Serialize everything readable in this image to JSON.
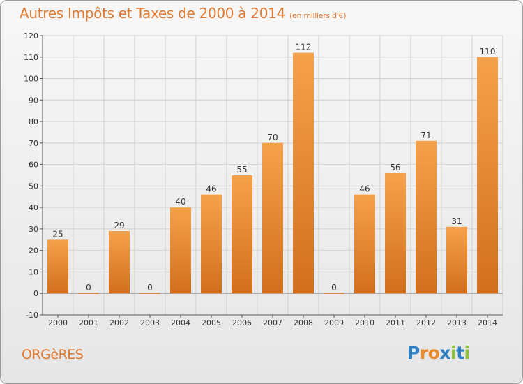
{
  "title": "Autres Impôts et Taxes de 2000 à 2014",
  "subtitle": "(en milliers d'€)",
  "commune": "ORGèRES",
  "logo": {
    "letters": [
      "P",
      "r",
      "o",
      "x",
      "i",
      "t",
      "i"
    ],
    "colors": [
      "#2e7fc1",
      "#e98a2b",
      "#e98a2b",
      "#2e7fc1",
      "#8cbf3a",
      "#2e7fc1",
      "#8cbf3a"
    ]
  },
  "colors": {
    "bar_light": "#f5a14a",
    "bar_dark": "#d36f1c",
    "accent": "#e0782e"
  },
  "chart_data": {
    "type": "bar",
    "categories": [
      "2000",
      "2001",
      "2002",
      "2003",
      "2004",
      "2005",
      "2006",
      "2007",
      "2008",
      "2009",
      "2010",
      "2011",
      "2012",
      "2013",
      "2014"
    ],
    "values": [
      25,
      0,
      29,
      0,
      40,
      46,
      55,
      70,
      112,
      0,
      46,
      56,
      71,
      31,
      110
    ],
    "ylim": [
      -10,
      120
    ],
    "yticks": [
      -10,
      0,
      10,
      20,
      30,
      40,
      50,
      60,
      70,
      80,
      90,
      100,
      110,
      120
    ],
    "grid": true,
    "data_labels": true
  }
}
